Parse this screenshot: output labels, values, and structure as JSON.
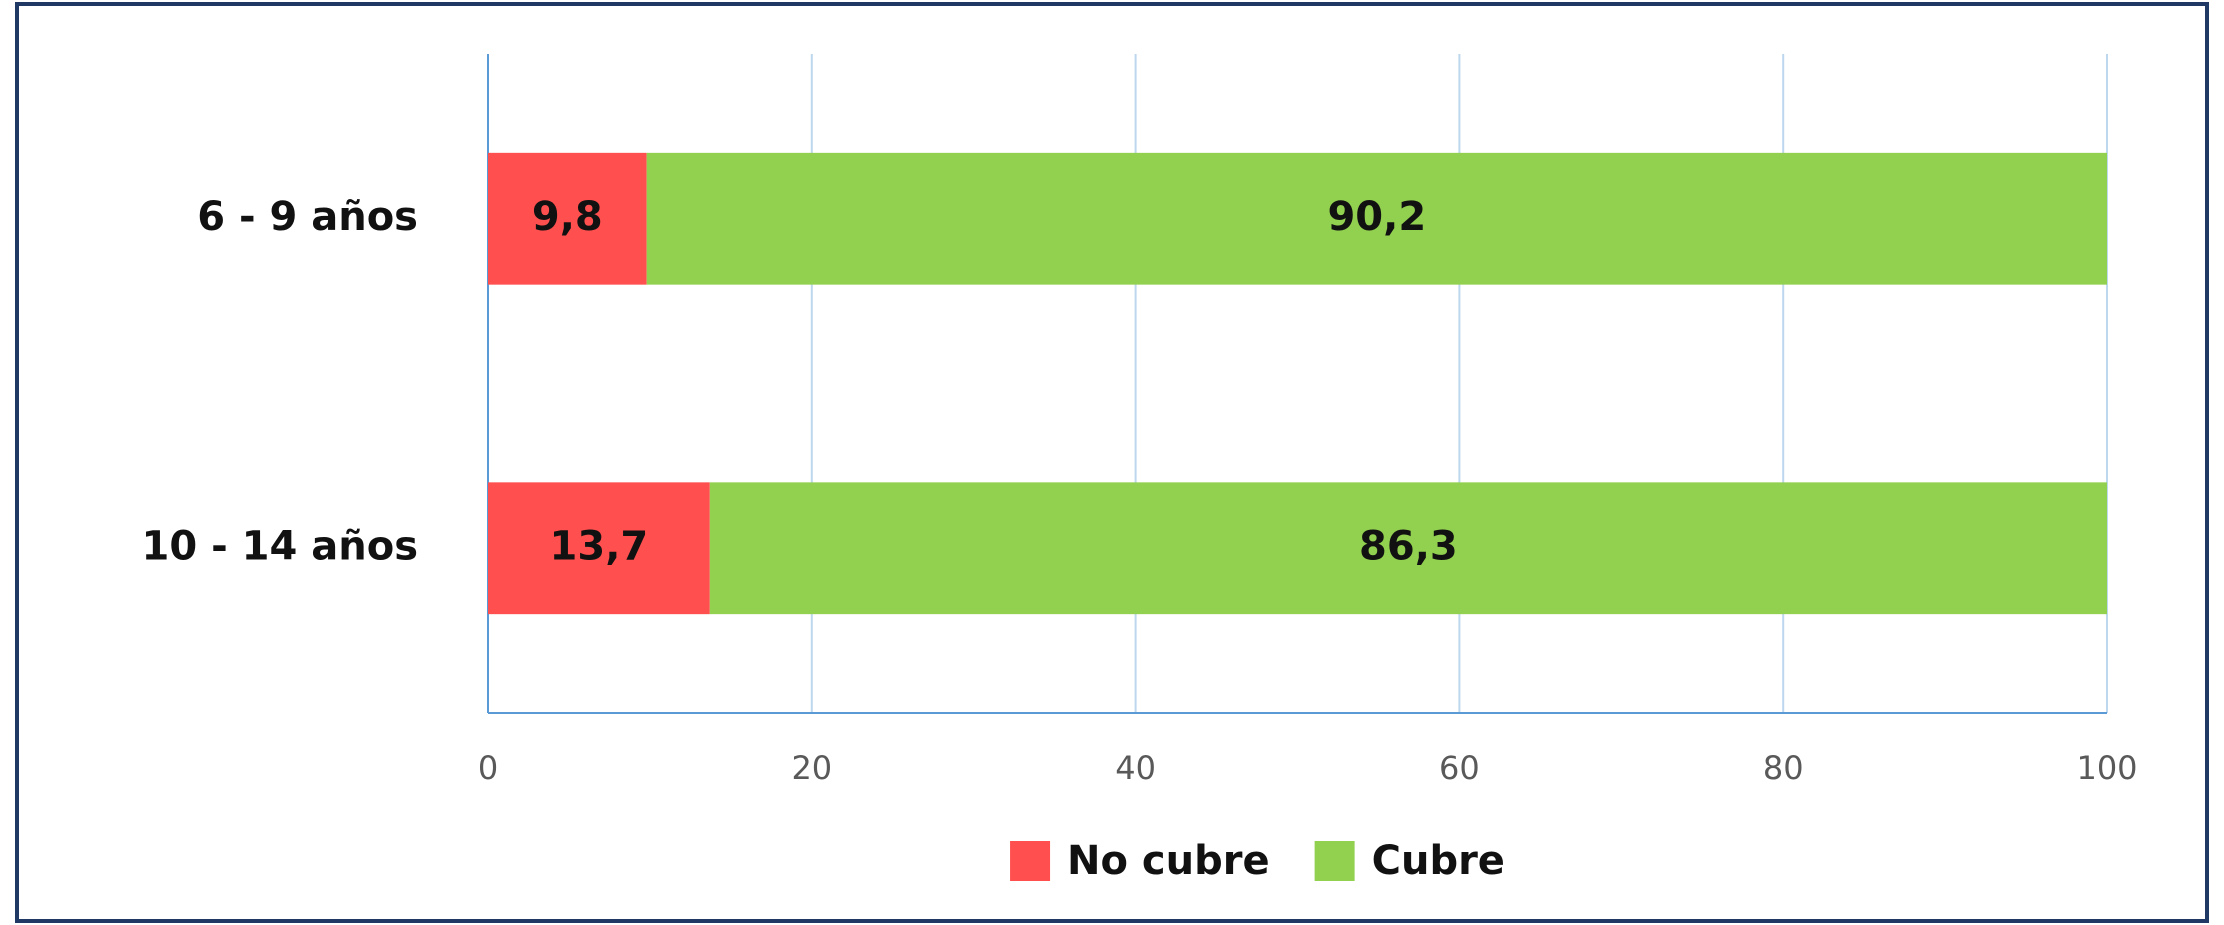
{
  "chart_data": {
    "type": "stacked_bar_horizontal",
    "categories": [
      "6 - 9 años",
      "10 - 14 años"
    ],
    "series": [
      {
        "name": "No cubre",
        "color": "#ff4f4f",
        "values": [
          9.8,
          13.7
        ],
        "value_labels": [
          "9,8",
          "13,7"
        ]
      },
      {
        "name": "Cubre",
        "color": "#92d050",
        "values": [
          90.2,
          86.3
        ],
        "value_labels": [
          "90,2",
          "86,3"
        ]
      }
    ],
    "xlim": [
      0,
      100
    ],
    "xticks": [
      0,
      20,
      40,
      60,
      80,
      100
    ],
    "grid": true,
    "legend": "bottom"
  }
}
